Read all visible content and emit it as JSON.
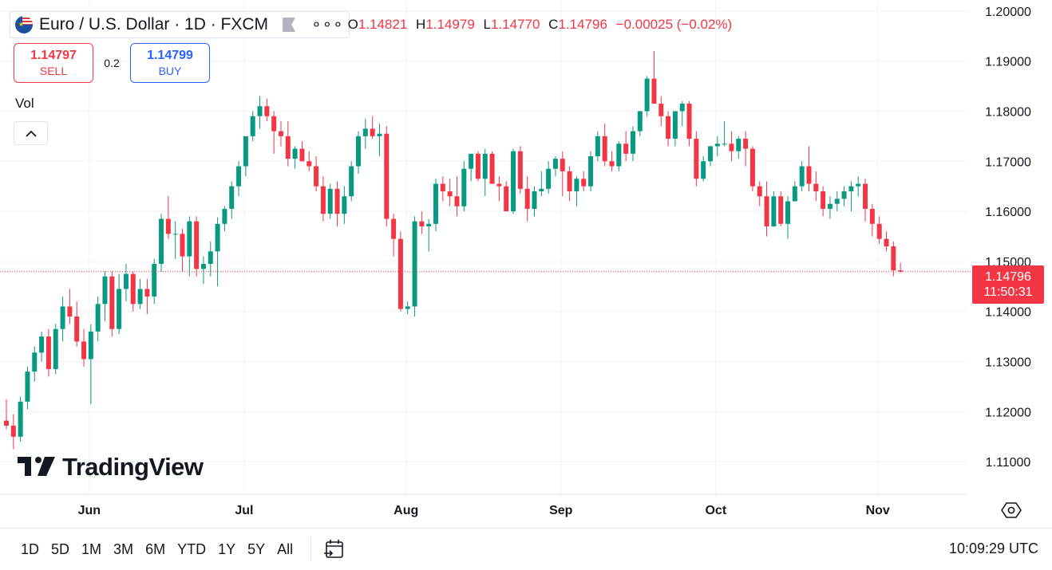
{
  "header": {
    "symbol_title": "Euro / U.S. Dollar · 1D · FXCM",
    "more_label": "∘∘∘",
    "ohlc": {
      "o_label": "O",
      "o_value": "1.14821",
      "h_label": "H",
      "h_value": "1.14979",
      "l_label": "L",
      "l_value": "1.14770",
      "c_label": "C",
      "c_value": "1.14796",
      "change": "−0.00025 (−0.02%)"
    }
  },
  "trade": {
    "sell_price": "1.14797",
    "sell_label": "SELL",
    "spread": "0.2",
    "buy_price": "1.14799",
    "buy_label": "BUY"
  },
  "indicators": {
    "vol_label": "Vol"
  },
  "watermark": {
    "text": "TradingView"
  },
  "price_badge": {
    "price": "1.14796",
    "countdown": "11:50:31"
  },
  "bottom": {
    "ranges": [
      "1D",
      "5D",
      "1M",
      "3M",
      "6M",
      "YTD",
      "1Y",
      "5Y",
      "All"
    ],
    "clock": "10:09:29 UTC"
  },
  "colors": {
    "up": "#089981",
    "down": "#f23645",
    "grid": "#f0f3fa",
    "text": "#131722",
    "buy": "#2962ff"
  },
  "icons": {
    "flag": "eur-usd-flag-icon",
    "more": "more-dots-icon",
    "collapse": "chevron-up-icon",
    "calendar": "calendar-goto-icon",
    "settings": "chart-settings-icon"
  },
  "chart_data": {
    "type": "candlestick",
    "y_ticks": [
      "1.20000",
      "1.19000",
      "1.18000",
      "1.17000",
      "1.16000",
      "1.15000",
      "1.14000",
      "1.13000",
      "1.12000",
      "1.11000"
    ],
    "ylim": [
      1.1035,
      1.2022
    ],
    "x_labels": [
      "Jun",
      "Jul",
      "Aug",
      "Sep",
      "Oct",
      "Nov"
    ],
    "last_price": 1.14796,
    "candles": [
      [
        1.1182,
        1.1225,
        1.1165,
        1.1172
      ],
      [
        1.1172,
        1.1195,
        1.1125,
        1.115
      ],
      [
        1.115,
        1.123,
        1.114,
        1.122
      ],
      [
        1.122,
        1.129,
        1.1205,
        1.128
      ],
      [
        1.128,
        1.133,
        1.126,
        1.1318
      ],
      [
        1.1318,
        1.136,
        1.13,
        1.135
      ],
      [
        1.135,
        1.1365,
        1.127,
        1.1285
      ],
      [
        1.1285,
        1.1375,
        1.1275,
        1.1365
      ],
      [
        1.1365,
        1.143,
        1.134,
        1.141
      ],
      [
        1.141,
        1.1445,
        1.1375,
        1.139
      ],
      [
        1.139,
        1.142,
        1.133,
        1.134
      ],
      [
        1.134,
        1.1365,
        1.129,
        1.1305
      ],
      [
        1.1305,
        1.1375,
        1.1215,
        1.136
      ],
      [
        1.136,
        1.143,
        1.134,
        1.1415
      ],
      [
        1.1415,
        1.148,
        1.138,
        1.147
      ],
      [
        1.147,
        1.148,
        1.135,
        1.1365
      ],
      [
        1.1365,
        1.1475,
        1.1355,
        1.1445
      ],
      [
        1.1445,
        1.1495,
        1.142,
        1.1475
      ],
      [
        1.1475,
        1.148,
        1.14,
        1.1415
      ],
      [
        1.1415,
        1.1465,
        1.1405,
        1.1445
      ],
      [
        1.1445,
        1.1465,
        1.1395,
        1.143
      ],
      [
        1.143,
        1.1505,
        1.1415,
        1.1495
      ],
      [
        1.1495,
        1.1595,
        1.148,
        1.1585
      ],
      [
        1.1585,
        1.163,
        1.1545,
        1.1555
      ],
      [
        1.1555,
        1.158,
        1.1505,
        1.1555
      ],
      [
        1.1555,
        1.1565,
        1.148,
        1.151
      ],
      [
        1.151,
        1.159,
        1.147,
        1.158
      ],
      [
        1.158,
        1.159,
        1.147,
        1.1485
      ],
      [
        1.1485,
        1.151,
        1.1455,
        1.1495
      ],
      [
        1.1495,
        1.154,
        1.147,
        1.152
      ],
      [
        1.152,
        1.1588,
        1.145,
        1.1575
      ],
      [
        1.1575,
        1.161,
        1.156,
        1.1605
      ],
      [
        1.1605,
        1.166,
        1.1585,
        1.165
      ],
      [
        1.165,
        1.17,
        1.163,
        1.169
      ],
      [
        1.169,
        1.175,
        1.167,
        1.175
      ],
      [
        1.175,
        1.18,
        1.174,
        1.179
      ],
      [
        1.179,
        1.183,
        1.1765,
        1.181
      ],
      [
        1.181,
        1.1825,
        1.178,
        1.179
      ],
      [
        1.179,
        1.18,
        1.1715,
        1.176
      ],
      [
        1.176,
        1.178,
        1.173,
        1.175
      ],
      [
        1.175,
        1.178,
        1.169,
        1.1705
      ],
      [
        1.1705,
        1.173,
        1.1685,
        1.1725
      ],
      [
        1.1725,
        1.174,
        1.17,
        1.17
      ],
      [
        1.17,
        1.172,
        1.168,
        1.169
      ],
      [
        1.169,
        1.171,
        1.164,
        1.165
      ],
      [
        1.165,
        1.167,
        1.158,
        1.1595
      ],
      [
        1.1595,
        1.1655,
        1.1585,
        1.1645
      ],
      [
        1.1645,
        1.166,
        1.157,
        1.1595
      ],
      [
        1.1595,
        1.165,
        1.1575,
        1.163
      ],
      [
        1.163,
        1.17,
        1.162,
        1.169
      ],
      [
        1.169,
        1.176,
        1.1675,
        1.175
      ],
      [
        1.175,
        1.1785,
        1.1725,
        1.1765
      ],
      [
        1.1765,
        1.179,
        1.1745,
        1.175
      ],
      [
        1.175,
        1.1775,
        1.171,
        1.1755
      ],
      [
        1.1755,
        1.177,
        1.157,
        1.1585
      ],
      [
        1.1585,
        1.1595,
        1.151,
        1.1545
      ],
      [
        1.1545,
        1.156,
        1.14,
        1.1405
      ],
      [
        1.1405,
        1.142,
        1.1395,
        1.141
      ],
      [
        1.141,
        1.159,
        1.139,
        1.158
      ],
      [
        1.158,
        1.16,
        1.1555,
        1.157
      ],
      [
        1.157,
        1.1585,
        1.152,
        1.1575
      ],
      [
        1.1575,
        1.1665,
        1.156,
        1.1655
      ],
      [
        1.1655,
        1.167,
        1.162,
        1.164
      ],
      [
        1.164,
        1.1665,
        1.161,
        1.163
      ],
      [
        1.163,
        1.167,
        1.159,
        1.161
      ],
      [
        1.161,
        1.17,
        1.16,
        1.1685
      ],
      [
        1.1685,
        1.171,
        1.166,
        1.1715
      ],
      [
        1.1715,
        1.172,
        1.166,
        1.1665
      ],
      [
        1.1665,
        1.1725,
        1.163,
        1.1715
      ],
      [
        1.1715,
        1.172,
        1.1655,
        1.1655
      ],
      [
        1.1655,
        1.167,
        1.162,
        1.165
      ],
      [
        1.165,
        1.166,
        1.16,
        1.16
      ],
      [
        1.16,
        1.1725,
        1.1595,
        1.172
      ],
      [
        1.172,
        1.173,
        1.1635,
        1.1645
      ],
      [
        1.1645,
        1.167,
        1.158,
        1.1605
      ],
      [
        1.1605,
        1.165,
        1.159,
        1.164
      ],
      [
        1.164,
        1.168,
        1.163,
        1.1645
      ],
      [
        1.1645,
        1.17,
        1.1635,
        1.1685
      ],
      [
        1.1685,
        1.171,
        1.167,
        1.1705
      ],
      [
        1.1705,
        1.172,
        1.163,
        1.168
      ],
      [
        1.168,
        1.169,
        1.162,
        1.164
      ],
      [
        1.164,
        1.167,
        1.161,
        1.1665
      ],
      [
        1.1665,
        1.168,
        1.164,
        1.165
      ],
      [
        1.165,
        1.172,
        1.164,
        1.171
      ],
      [
        1.171,
        1.176,
        1.17,
        1.175
      ],
      [
        1.175,
        1.1775,
        1.169,
        1.17
      ],
      [
        1.17,
        1.172,
        1.168,
        1.169
      ],
      [
        1.169,
        1.174,
        1.168,
        1.1735
      ],
      [
        1.1735,
        1.176,
        1.17,
        1.1715
      ],
      [
        1.1715,
        1.177,
        1.17,
        1.176
      ],
      [
        1.176,
        1.18,
        1.175,
        1.18
      ],
      [
        1.18,
        1.187,
        1.179,
        1.1865
      ],
      [
        1.1865,
        1.192,
        1.182,
        1.1815
      ],
      [
        1.1815,
        1.183,
        1.177,
        1.179
      ],
      [
        1.179,
        1.18,
        1.173,
        1.1745
      ],
      [
        1.1745,
        1.18,
        1.173,
        1.18
      ],
      [
        1.18,
        1.182,
        1.177,
        1.1815
      ],
      [
        1.1815,
        1.182,
        1.173,
        1.1745
      ],
      [
        1.1745,
        1.176,
        1.165,
        1.1665
      ],
      [
        1.1665,
        1.171,
        1.166,
        1.17
      ],
      [
        1.17,
        1.173,
        1.169,
        1.173
      ],
      [
        1.173,
        1.175,
        1.171,
        1.1735
      ],
      [
        1.1735,
        1.178,
        1.173,
        1.1735
      ],
      [
        1.1735,
        1.176,
        1.17,
        1.172
      ],
      [
        1.172,
        1.175,
        1.1705,
        1.1745
      ],
      [
        1.1745,
        1.176,
        1.169,
        1.1725
      ],
      [
        1.1725,
        1.173,
        1.164,
        1.165
      ],
      [
        1.165,
        1.166,
        1.161,
        1.163
      ],
      [
        1.163,
        1.166,
        1.155,
        1.157
      ],
      [
        1.157,
        1.164,
        1.157,
        1.163
      ],
      [
        1.163,
        1.164,
        1.157,
        1.1575
      ],
      [
        1.1575,
        1.163,
        1.1545,
        1.162
      ],
      [
        1.162,
        1.166,
        1.162,
        1.165
      ],
      [
        1.165,
        1.17,
        1.164,
        1.169
      ],
      [
        1.169,
        1.173,
        1.164,
        1.1655
      ],
      [
        1.1655,
        1.168,
        1.162,
        1.164
      ],
      [
        1.164,
        1.165,
        1.159,
        1.1605
      ],
      [
        1.1605,
        1.163,
        1.1585,
        1.1615
      ],
      [
        1.1615,
        1.164,
        1.16,
        1.1625
      ],
      [
        1.1625,
        1.165,
        1.161,
        1.164
      ],
      [
        1.164,
        1.166,
        1.16,
        1.165
      ],
      [
        1.165,
        1.167,
        1.163,
        1.1655
      ],
      [
        1.1655,
        1.1665,
        1.158,
        1.1605
      ],
      [
        1.1605,
        1.1615,
        1.155,
        1.1575
      ],
      [
        1.1575,
        1.159,
        1.1535,
        1.1545
      ],
      [
        1.1545,
        1.156,
        1.152,
        1.153
      ],
      [
        1.153,
        1.154,
        1.147,
        1.1482
      ],
      [
        1.14821,
        1.14979,
        1.1477,
        1.14796
      ]
    ]
  }
}
